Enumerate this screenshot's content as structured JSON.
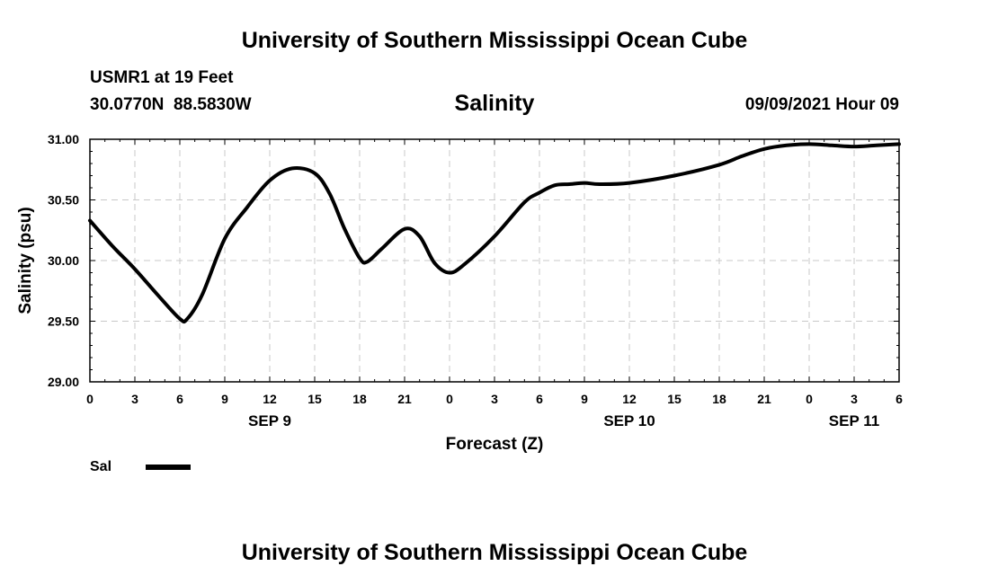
{
  "header": {
    "title_top": "University of Southern Mississippi Ocean Cube",
    "station": "USMR1 at 19 Feet",
    "coords": "30.0770N  88.5830W",
    "variable": "Salinity",
    "datetime": "09/09/2021 Hour 09"
  },
  "footer": {
    "title_bottom": "University of Southern Mississippi Ocean Cube"
  },
  "legend": {
    "label": "Sal",
    "color": "#000000"
  },
  "chart_data": {
    "type": "line",
    "title": "Salinity",
    "xlabel": "Forecast (Z)",
    "ylabel": "Salinity (psu)",
    "ylim": [
      29.0,
      31.0
    ],
    "xlim": [
      0,
      54
    ],
    "y_ticks": [
      "29.00",
      "29.50",
      "30.00",
      "30.50",
      "31.00"
    ],
    "x_ticks": [
      {
        "x": 0,
        "label": "0"
      },
      {
        "x": 3,
        "label": "3"
      },
      {
        "x": 6,
        "label": "6"
      },
      {
        "x": 9,
        "label": "9"
      },
      {
        "x": 12,
        "label": "12"
      },
      {
        "x": 15,
        "label": "15"
      },
      {
        "x": 18,
        "label": "18"
      },
      {
        "x": 21,
        "label": "21"
      },
      {
        "x": 24,
        "label": "0"
      },
      {
        "x": 27,
        "label": "3"
      },
      {
        "x": 30,
        "label": "6"
      },
      {
        "x": 33,
        "label": "9"
      },
      {
        "x": 36,
        "label": "12"
      },
      {
        "x": 39,
        "label": "15"
      },
      {
        "x": 42,
        "label": "18"
      },
      {
        "x": 45,
        "label": "21"
      },
      {
        "x": 48,
        "label": "0"
      },
      {
        "x": 51,
        "label": "3"
      },
      {
        "x": 54,
        "label": "6"
      }
    ],
    "date_labels": [
      {
        "x": 12,
        "label": "SEP 9"
      },
      {
        "x": 36,
        "label": "SEP 10"
      },
      {
        "x": 51,
        "label": "SEP 11"
      }
    ],
    "grid": true,
    "series": [
      {
        "name": "Sal",
        "x": [
          0,
          1.5,
          3,
          4.5,
          6,
          6.5,
          7.5,
          9,
          10.5,
          12,
          13.5,
          15,
          16,
          17,
          18,
          18.5,
          19.5,
          21,
          22,
          23,
          24,
          25,
          27,
          29,
          30,
          31,
          32,
          33,
          34,
          36,
          39,
          42,
          43.5,
          45,
          46.5,
          48,
          49.5,
          51,
          52.5,
          54
        ],
        "values": [
          30.33,
          30.12,
          29.93,
          29.72,
          29.52,
          29.52,
          29.72,
          30.18,
          30.44,
          30.66,
          30.76,
          30.72,
          30.55,
          30.26,
          30.02,
          29.99,
          30.1,
          30.26,
          30.2,
          29.98,
          29.9,
          29.97,
          30.2,
          30.48,
          30.56,
          30.62,
          30.63,
          30.64,
          30.63,
          30.64,
          30.7,
          30.79,
          30.86,
          30.92,
          30.95,
          30.96,
          30.95,
          30.94,
          30.95,
          30.96
        ]
      }
    ]
  }
}
